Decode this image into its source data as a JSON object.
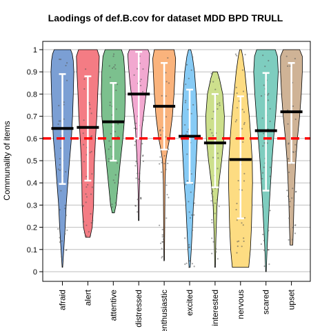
{
  "chart_data": {
    "type": "violin",
    "title": "Laodings of def.B.cov for dataset MDD BPD TRULL",
    "ylabel": "Communality of items",
    "xlabel": "",
    "ylim": [
      0,
      1
    ],
    "yticks": [
      "0",
      "0.1",
      "0.2",
      "0.3",
      "0.4",
      "0.5",
      "0.6",
      "0.7",
      "0.8",
      "0.9",
      "1"
    ],
    "grid": "horizontal",
    "reference_line": {
      "y": 0.6,
      "color": "#ff0000",
      "style": "dashed"
    },
    "categories": [
      "afraid",
      "alert",
      "attentive",
      "distressed",
      "enthusiastic",
      "excited",
      "interested",
      "nervous",
      "scared",
      "upset"
    ],
    "colors": [
      "#7b9fd4",
      "#f47c84",
      "#7cc08e",
      "#f2a8d0",
      "#fab37c",
      "#87cbf5",
      "#cde08c",
      "#fddc82",
      "#7ecdbf",
      "#cfb396"
    ],
    "series": [
      {
        "category": "afraid",
        "min": 0.02,
        "max": 1.0,
        "median": 0.645,
        "whisker_low": 0.395,
        "whisker_high": 0.89,
        "shape": [
          [
            0.02,
            0.01
          ],
          [
            0.1,
            0.05
          ],
          [
            0.2,
            0.1
          ],
          [
            0.3,
            0.14
          ],
          [
            0.4,
            0.2
          ],
          [
            0.5,
            0.26
          ],
          [
            0.6,
            0.33
          ],
          [
            0.7,
            0.37
          ],
          [
            0.8,
            0.4
          ],
          [
            0.9,
            0.42
          ],
          [
            0.95,
            0.4
          ],
          [
            0.98,
            0.36
          ],
          [
            1.0,
            0.3
          ]
        ]
      },
      {
        "category": "alert",
        "min": 0.155,
        "max": 1.0,
        "median": 0.65,
        "whisker_low": 0.41,
        "whisker_high": 0.88,
        "shape": [
          [
            0.155,
            0.08
          ],
          [
            0.2,
            0.16
          ],
          [
            0.3,
            0.21
          ],
          [
            0.4,
            0.22
          ],
          [
            0.5,
            0.24
          ],
          [
            0.6,
            0.28
          ],
          [
            0.7,
            0.33
          ],
          [
            0.8,
            0.36
          ],
          [
            0.9,
            0.4
          ],
          [
            0.97,
            0.42
          ],
          [
            1.0,
            0.34
          ]
        ]
      },
      {
        "category": "attentive",
        "min": 0.265,
        "max": 1.0,
        "median": 0.675,
        "whisker_low": 0.5,
        "whisker_high": 0.85,
        "shape": [
          [
            0.265,
            0.04
          ],
          [
            0.3,
            0.1
          ],
          [
            0.4,
            0.18
          ],
          [
            0.5,
            0.26
          ],
          [
            0.6,
            0.35
          ],
          [
            0.7,
            0.42
          ],
          [
            0.8,
            0.44
          ],
          [
            0.9,
            0.42
          ],
          [
            0.97,
            0.38
          ],
          [
            1.0,
            0.3
          ]
        ]
      },
      {
        "category": "distressed",
        "min": 0.23,
        "max": 1.0,
        "median": 0.8,
        "whisker_low": 0.6,
        "whisker_high": 0.99,
        "shape": [
          [
            0.23,
            0.01
          ],
          [
            0.35,
            0.02
          ],
          [
            0.45,
            0.04
          ],
          [
            0.55,
            0.08
          ],
          [
            0.65,
            0.12
          ],
          [
            0.75,
            0.22
          ],
          [
            0.85,
            0.32
          ],
          [
            0.93,
            0.38
          ],
          [
            0.98,
            0.4
          ],
          [
            1.0,
            0.34
          ]
        ]
      },
      {
        "category": "enthusiastic",
        "min": 0.05,
        "max": 1.0,
        "median": 0.745,
        "whisker_low": 0.55,
        "whisker_high": 0.94,
        "shape": [
          [
            0.05,
            0.01
          ],
          [
            0.2,
            0.02
          ],
          [
            0.4,
            0.03
          ],
          [
            0.5,
            0.06
          ],
          [
            0.55,
            0.12
          ],
          [
            0.6,
            0.2
          ],
          [
            0.7,
            0.3
          ],
          [
            0.8,
            0.36
          ],
          [
            0.9,
            0.4
          ],
          [
            0.96,
            0.42
          ],
          [
            1.0,
            0.36
          ]
        ]
      },
      {
        "category": "excited",
        "min": 0.02,
        "max": 1.0,
        "median": 0.61,
        "whisker_low": 0.4,
        "whisker_high": 0.82,
        "shape": [
          [
            0.02,
            0.02
          ],
          [
            0.1,
            0.06
          ],
          [
            0.2,
            0.1
          ],
          [
            0.3,
            0.14
          ],
          [
            0.4,
            0.2
          ],
          [
            0.5,
            0.24
          ],
          [
            0.6,
            0.28
          ],
          [
            0.7,
            0.28
          ],
          [
            0.8,
            0.24
          ],
          [
            0.9,
            0.18
          ],
          [
            0.97,
            0.1
          ],
          [
            1.0,
            0.04
          ]
        ]
      },
      {
        "category": "interested",
        "min": 0.02,
        "max": 0.9,
        "median": 0.58,
        "whisker_low": 0.38,
        "whisker_high": 0.8,
        "shape": [
          [
            0.02,
            0.01
          ],
          [
            0.15,
            0.03
          ],
          [
            0.3,
            0.07
          ],
          [
            0.4,
            0.14
          ],
          [
            0.5,
            0.24
          ],
          [
            0.6,
            0.32
          ],
          [
            0.7,
            0.34
          ],
          [
            0.8,
            0.28
          ],
          [
            0.87,
            0.16
          ],
          [
            0.9,
            0.08
          ]
        ]
      },
      {
        "category": "nervous",
        "min": 0.02,
        "max": 1.0,
        "median": 0.505,
        "whisker_low": 0.24,
        "whisker_high": 0.79,
        "shape": [
          [
            0.02,
            0.3
          ],
          [
            0.1,
            0.36
          ],
          [
            0.2,
            0.4
          ],
          [
            0.3,
            0.42
          ],
          [
            0.4,
            0.44
          ],
          [
            0.5,
            0.43
          ],
          [
            0.6,
            0.38
          ],
          [
            0.7,
            0.32
          ],
          [
            0.8,
            0.24
          ],
          [
            0.9,
            0.16
          ],
          [
            0.97,
            0.08
          ],
          [
            1.0,
            0.03
          ]
        ]
      },
      {
        "category": "scared",
        "min": 0.0,
        "max": 1.0,
        "median": 0.635,
        "whisker_low": 0.365,
        "whisker_high": 0.895,
        "shape": [
          [
            0.0,
            0.01
          ],
          [
            0.1,
            0.04
          ],
          [
            0.2,
            0.08
          ],
          [
            0.3,
            0.12
          ],
          [
            0.4,
            0.17
          ],
          [
            0.5,
            0.22
          ],
          [
            0.6,
            0.28
          ],
          [
            0.7,
            0.35
          ],
          [
            0.8,
            0.41
          ],
          [
            0.9,
            0.45
          ],
          [
            0.97,
            0.42
          ],
          [
            1.0,
            0.34
          ]
        ]
      },
      {
        "category": "upset",
        "min": 0.12,
        "max": 1.0,
        "median": 0.72,
        "whisker_low": 0.49,
        "whisker_high": 0.94,
        "shape": [
          [
            0.12,
            0.05
          ],
          [
            0.2,
            0.07
          ],
          [
            0.3,
            0.09
          ],
          [
            0.4,
            0.12
          ],
          [
            0.5,
            0.16
          ],
          [
            0.6,
            0.22
          ],
          [
            0.7,
            0.3
          ],
          [
            0.8,
            0.36
          ],
          [
            0.9,
            0.4
          ],
          [
            0.97,
            0.4
          ],
          [
            1.0,
            0.3
          ]
        ]
      }
    ]
  }
}
